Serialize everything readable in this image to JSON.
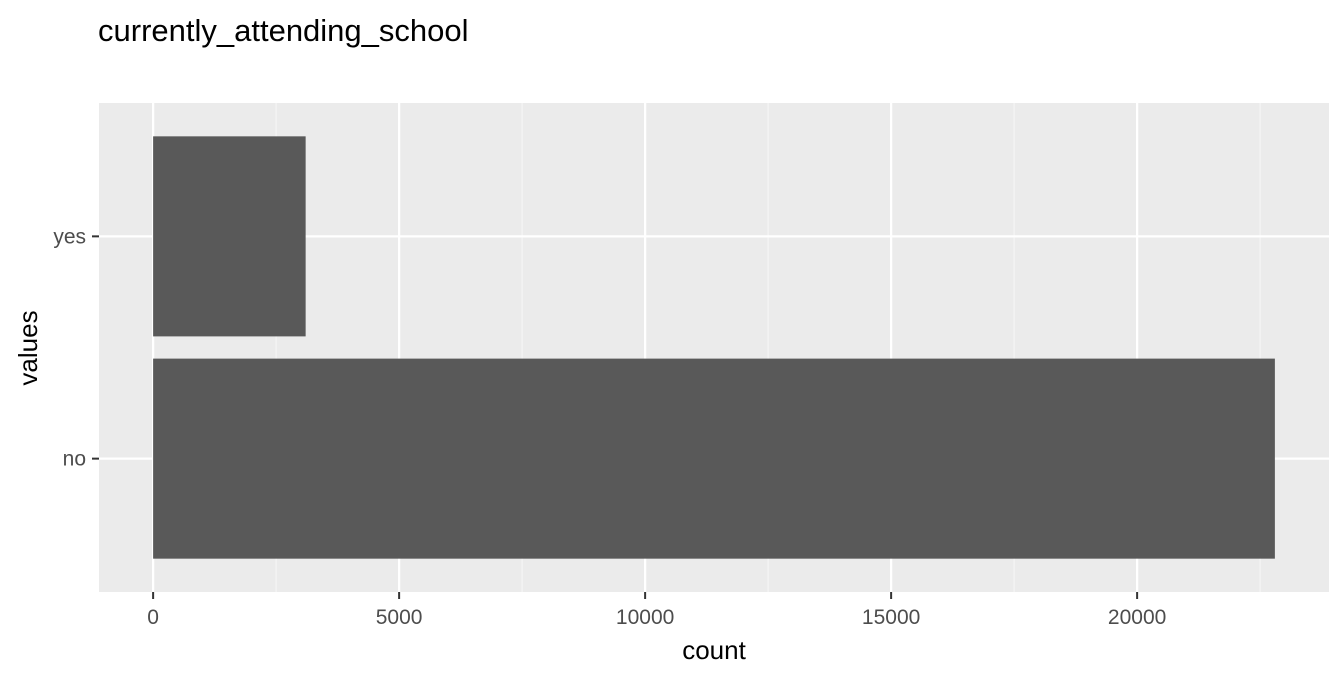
{
  "chart_data": {
    "type": "bar",
    "orientation": "horizontal",
    "title": "currently_attending_school",
    "xlabel": "count",
    "ylabel": "values",
    "categories": [
      "no",
      "yes"
    ],
    "values": [
      22800,
      3100
    ],
    "xlim": [
      -1100,
      23900
    ],
    "x_ticks": [
      0,
      5000,
      10000,
      15000,
      20000
    ],
    "x_tick_labels": [
      "0",
      "5000",
      "10000",
      "15000",
      "20000"
    ],
    "x_minor_ticks": [
      2500,
      7500,
      12500,
      17500,
      22500
    ],
    "grid": true,
    "legend": "none",
    "colors": {
      "bar": "#595959",
      "panel_background": "#ebebeb",
      "grid_major": "#ffffff",
      "grid_minor": "#f5f5f5",
      "tick_text": "#4d4d4d",
      "tick_mark": "#333333"
    }
  }
}
